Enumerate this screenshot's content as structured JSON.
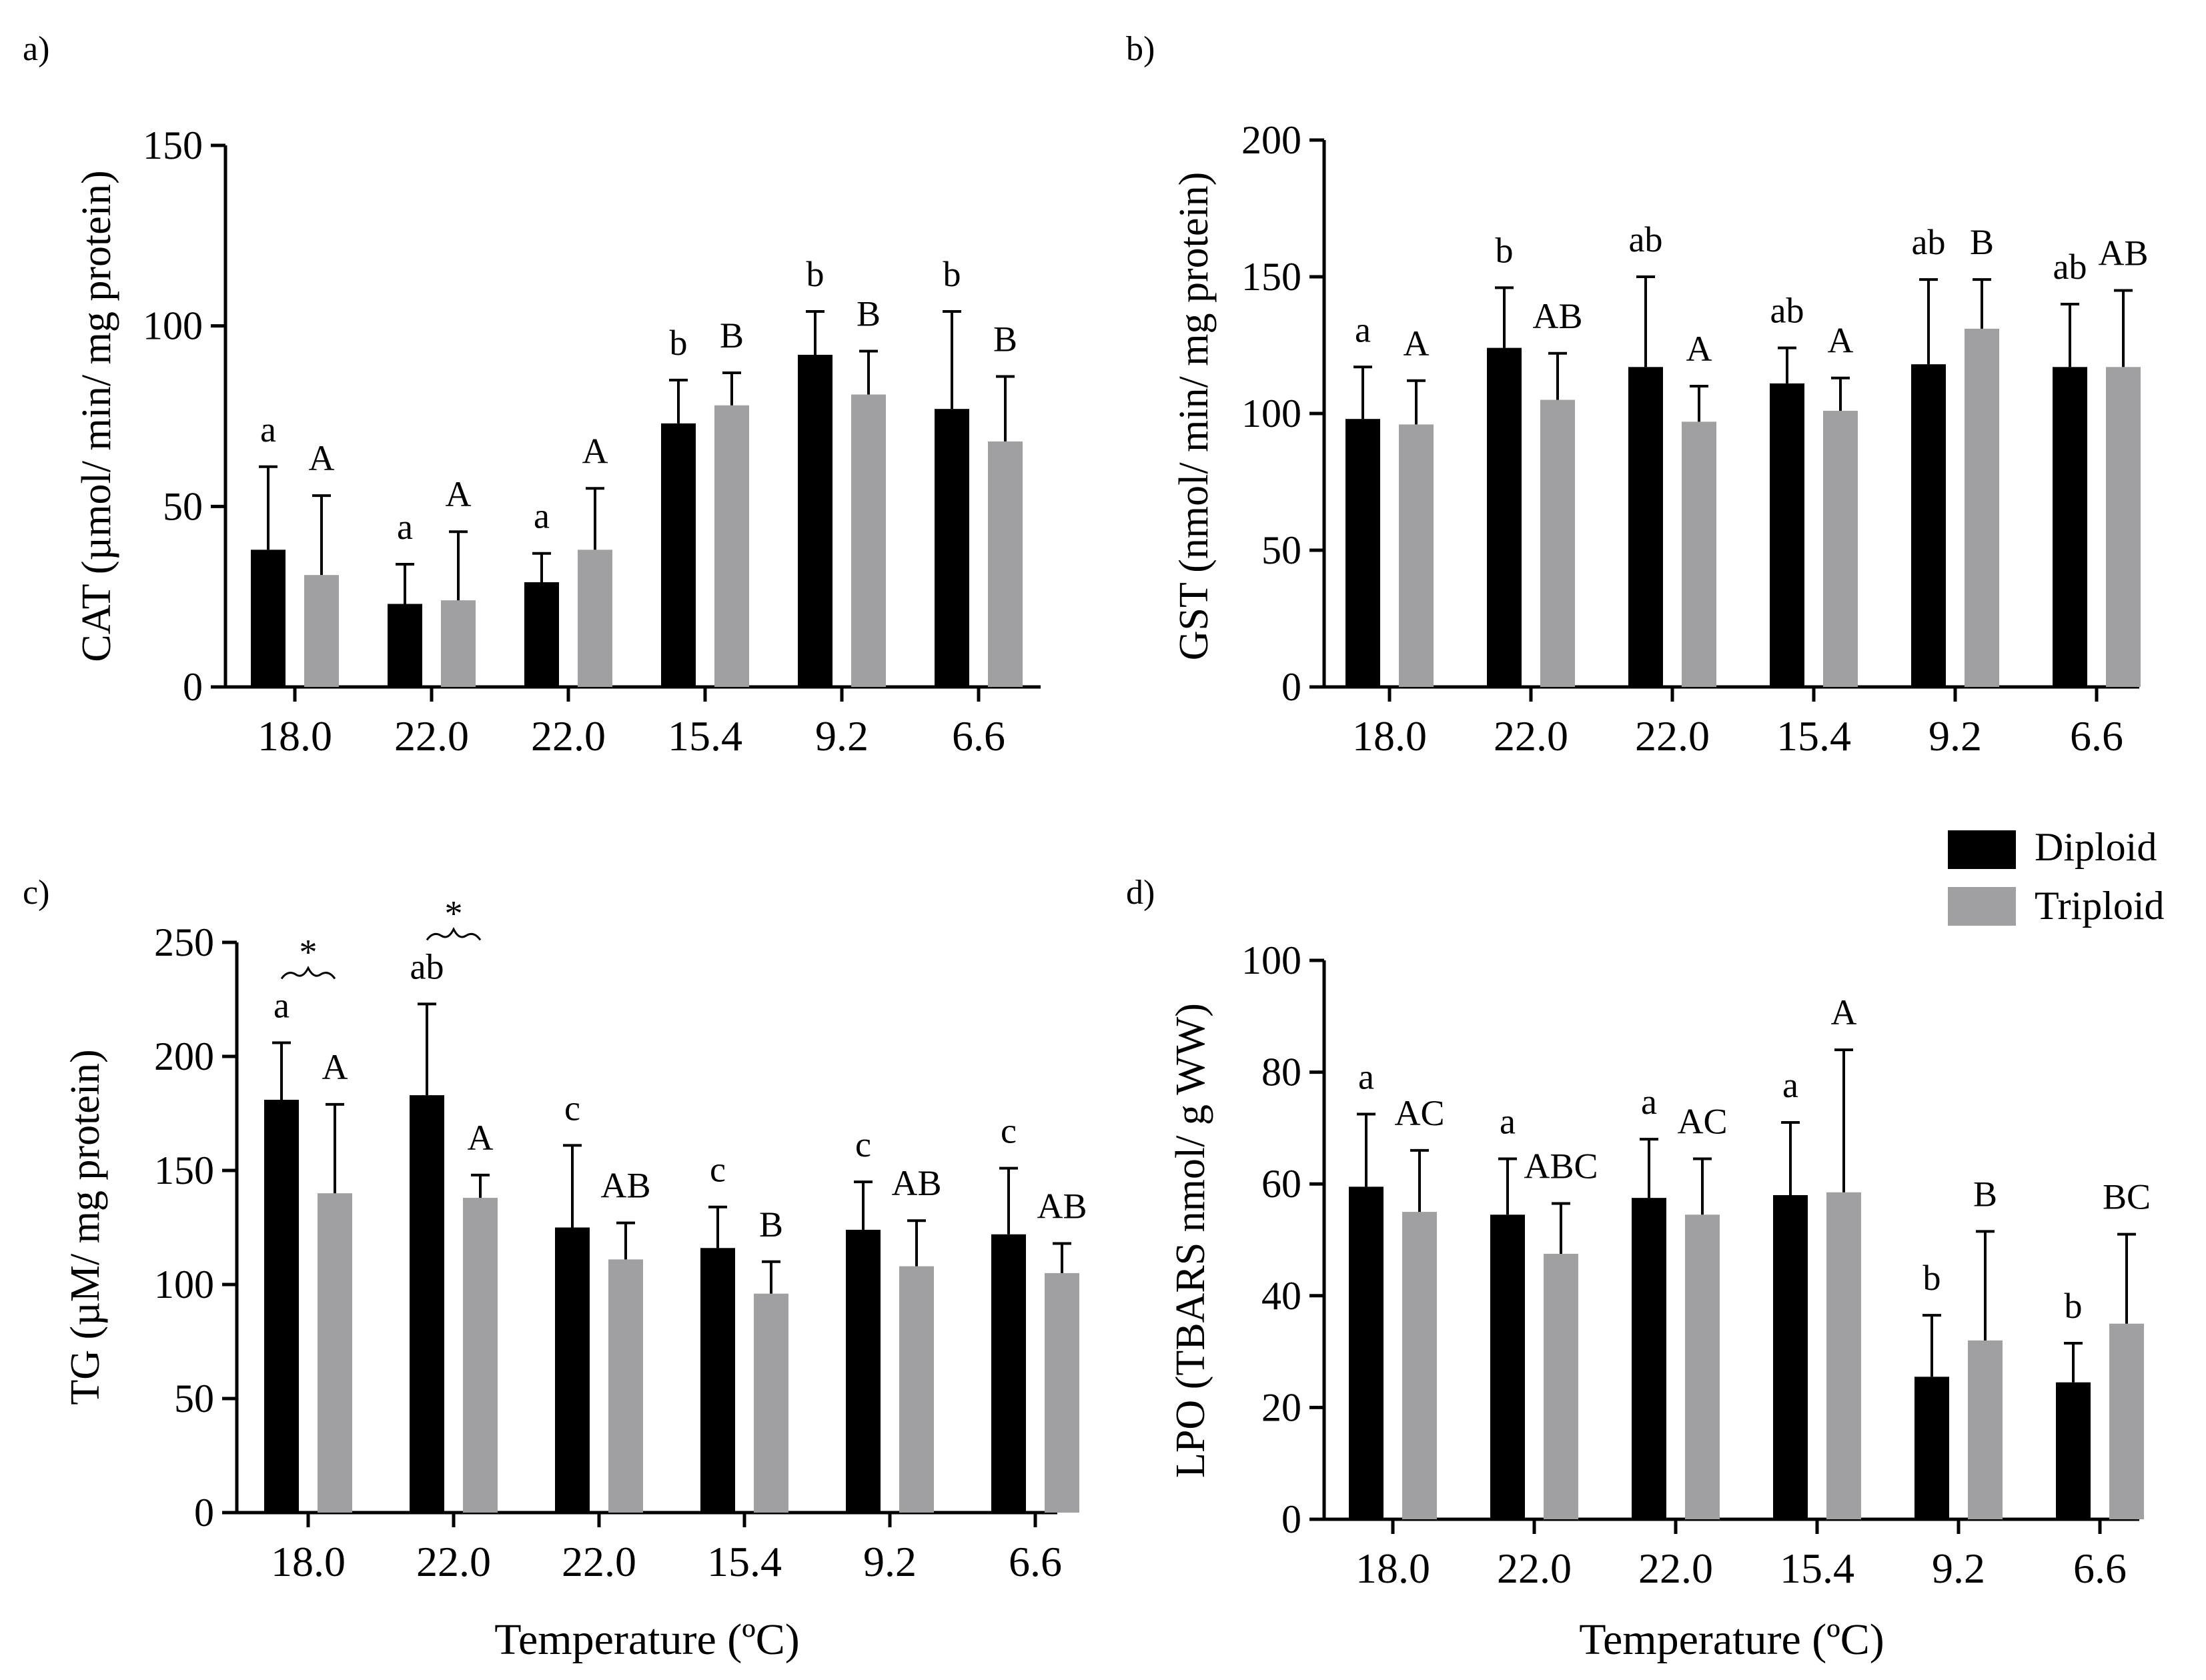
{
  "legend": {
    "placement": "right, between panels b and d",
    "items": [
      {
        "name": "Diploid",
        "color": "#000000"
      },
      {
        "name": "Triploid",
        "color": "#a0a0a2"
      }
    ]
  },
  "colors": {
    "diploid": "#000000",
    "triploid": "#a0a0a2",
    "axis": "#000000"
  },
  "chart_data": [
    {
      "type": "bar",
      "panel_label": "a)",
      "ylabel": "CAT (µmol/ min/ mg  protein)",
      "xlabel": "",
      "categories": [
        "18.0",
        "22.0",
        "22.0",
        "15.4",
        "9.2",
        "6.6"
      ],
      "ylim": [
        0,
        150
      ],
      "yticks": [
        0,
        50,
        100,
        150
      ],
      "grid": false,
      "series": [
        {
          "name": "Diploid",
          "values": [
            38,
            23,
            29,
            73,
            92,
            77
          ],
          "errors": [
            23,
            11,
            8,
            12,
            12,
            27
          ],
          "letters": [
            "a",
            "a",
            "a",
            "b",
            "b",
            "b"
          ]
        },
        {
          "name": "Triploid",
          "values": [
            31,
            24,
            38,
            78,
            81,
            68
          ],
          "errors": [
            22,
            19,
            17,
            9,
            12,
            18
          ],
          "letters": [
            "A",
            "A",
            "A",
            "B",
            "B",
            "B"
          ]
        }
      ],
      "significance": []
    },
    {
      "type": "bar",
      "panel_label": "b)",
      "ylabel": "GST (nmol/ min/ mg  protein)",
      "xlabel": "",
      "categories": [
        "18.0",
        "22.0",
        "22.0",
        "15.4",
        "9.2",
        "6.6"
      ],
      "ylim": [
        0,
        200
      ],
      "yticks": [
        0,
        50,
        100,
        150,
        200
      ],
      "grid": false,
      "series": [
        {
          "name": "Diploid",
          "values": [
            98,
            124,
            117,
            111,
            118,
            117
          ],
          "errors": [
            19,
            22,
            33,
            13,
            31,
            23
          ],
          "letters": [
            "a",
            "b",
            "ab",
            "ab",
            "ab",
            "ab"
          ]
        },
        {
          "name": "Triploid",
          "values": [
            96,
            105,
            97,
            101,
            131,
            117
          ],
          "errors": [
            16,
            17,
            13,
            12,
            18,
            28
          ],
          "letters": [
            "A",
            "AB",
            "A",
            "A",
            "B",
            "AB"
          ]
        }
      ],
      "significance": []
    },
    {
      "type": "bar",
      "panel_label": "c)",
      "ylabel": "TG (µM/ mg protein)",
      "xlabel": "Temperature (ºC)",
      "categories": [
        "18.0",
        "22.0",
        "22.0",
        "15.4",
        "9.2",
        "6.6"
      ],
      "ylim": [
        0,
        250
      ],
      "yticks": [
        0,
        50,
        100,
        150,
        200,
        250
      ],
      "grid": false,
      "series": [
        {
          "name": "Diploid",
          "values": [
            181,
            183,
            125,
            116,
            124,
            122
          ],
          "errors": [
            25,
            40,
            36,
            18,
            21,
            29
          ],
          "letters": [
            "a",
            "ab",
            "c",
            "c",
            "c",
            "c"
          ]
        },
        {
          "name": "Triploid",
          "values": [
            140,
            138,
            111,
            96,
            108,
            105
          ],
          "errors": [
            39,
            10,
            16,
            14,
            20,
            13
          ],
          "letters": [
            "A",
            "A",
            "AB",
            "B",
            "AB",
            "AB"
          ]
        }
      ],
      "significance": [
        {
          "group": 0,
          "label": "*"
        },
        {
          "group": 1,
          "label": "*"
        }
      ]
    },
    {
      "type": "bar",
      "panel_label": "d)",
      "ylabel": "LPO (TBARS nmol/ g  WW)",
      "xlabel": "Temperature (ºC)",
      "categories": [
        "18.0",
        "22.0",
        "22.0",
        "15.4",
        "9.2",
        "6.6"
      ],
      "ylim": [
        0,
        100
      ],
      "yticks": [
        0,
        20,
        40,
        60,
        80,
        100
      ],
      "grid": false,
      "series": [
        {
          "name": "Diploid",
          "values": [
            59.5,
            54.5,
            57.5,
            58,
            25.5,
            24.5
          ],
          "errors": [
            13,
            10,
            10.5,
            13,
            11,
            7
          ],
          "letters": [
            "a",
            "a",
            "a",
            "a",
            "b",
            "b"
          ]
        },
        {
          "name": "Triploid",
          "values": [
            55,
            47.5,
            54.5,
            58.5,
            32,
            35
          ],
          "errors": [
            11,
            9,
            10,
            25.5,
            19.5,
            16
          ],
          "letters": [
            "AC",
            "ABC",
            "AC",
            "A",
            "B",
            "BC"
          ]
        }
      ],
      "significance": []
    }
  ]
}
